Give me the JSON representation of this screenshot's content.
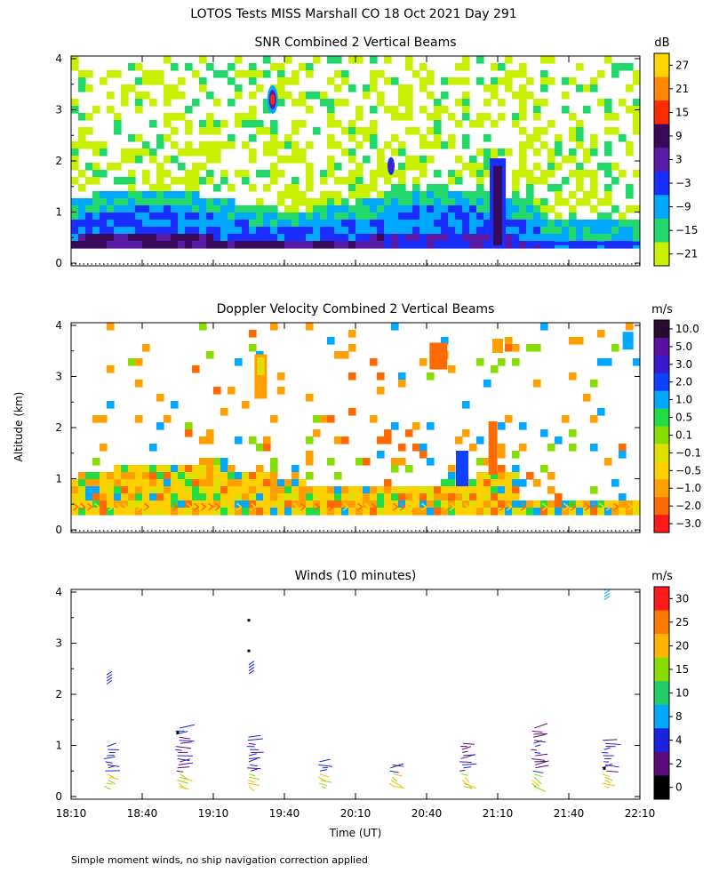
{
  "figure": {
    "title": "LOTOS Tests MISS Marshall CO  18 Oct 2021 Day 291",
    "y_axis_label": "Altitude (km)",
    "x_axis_label": "Time (UT)",
    "footnote": "Simple moment winds, no ship navigation correction applied",
    "x_ticks": [
      "18:10",
      "18:40",
      "19:10",
      "19:40",
      "20:10",
      "20:40",
      "21:10",
      "21:40",
      "22:10"
    ],
    "y_ticks": [
      "0",
      "1",
      "2",
      "3",
      "4"
    ]
  },
  "chart_data": [
    {
      "type": "heatmap",
      "title": "SNR Combined 2 Vertical Beams",
      "xlabel": "",
      "ylabel": "Altitude (km)",
      "xlim": [
        "18:10",
        "22:10"
      ],
      "ylim": [
        0,
        4
      ],
      "colorbar": {
        "unit": "dB",
        "labels": [
          "27",
          "21",
          "15",
          "9",
          "3",
          "−3",
          "−9",
          "−15",
          "−21"
        ],
        "colors": [
          "#ffd400",
          "#ff8800",
          "#ff2a00",
          "#3a0a5a",
          "#5a1aa8",
          "#1a2dff",
          "#00a8ff",
          "#22d86a",
          "#c8f000"
        ]
      },
      "features": [
        {
          "label": "strong low-level layer",
          "time_range": [
            "18:15",
            "21:05"
          ],
          "alt_range_km": [
            0.25,
            0.9
          ]
        },
        {
          "label": "isolated echo",
          "time": "19:35",
          "alt_km": 3.2
        },
        {
          "label": "isolated echo",
          "time": "20:25",
          "alt_km": 1.9
        },
        {
          "label": "convective column",
          "time": "21:10",
          "alt_range_km": [
            0.3,
            2.0
          ]
        }
      ]
    },
    {
      "type": "heatmap",
      "title": "Doppler Velocity Combined 2 Vertical Beams",
      "xlabel": "",
      "ylabel": "Altitude (km)",
      "xlim": [
        "18:10",
        "22:10"
      ],
      "ylim": [
        0,
        4
      ],
      "colorbar": {
        "unit": "m/s",
        "labels": [
          "10.0",
          "5.0",
          "3.0",
          "2.0",
          "1.0",
          "0.5",
          "0.1",
          "−0.1",
          "−0.5",
          "−1.0",
          "−2.0",
          "−3.0"
        ],
        "colors": [
          "#2a0a2e",
          "#5a10a0",
          "#3a18d0",
          "#1040ff",
          "#00a8ff",
          "#22dd44",
          "#88dd00",
          "#e0e000",
          "#ffd000",
          "#ffa000",
          "#ff6a00",
          "#ff1a1a"
        ]
      }
    },
    {
      "type": "scatter",
      "title": "Winds (10 minutes)",
      "xlabel": "Time (UT)",
      "ylabel": "Altitude (km)",
      "xlim": [
        "18:10",
        "22:10"
      ],
      "ylim": [
        0,
        4
      ],
      "colorbar": {
        "unit": "m/s",
        "labels": [
          "30",
          "25",
          "20",
          "15",
          "10",
          "8",
          "4",
          "2",
          "0"
        ],
        "colors": [
          "#ff1a1a",
          "#ff7a00",
          "#ffb400",
          "#88dd00",
          "#22cc66",
          "#00a8ff",
          "#1a22e0",
          "#5a0a7a",
          "#000000"
        ]
      },
      "profile_times": [
        "18:25",
        "18:55",
        "19:25",
        "19:55",
        "20:25",
        "20:55",
        "21:25",
        "21:55"
      ]
    }
  ]
}
